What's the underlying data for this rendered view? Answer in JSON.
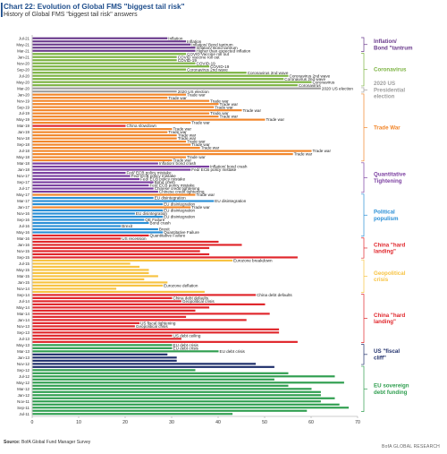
{
  "header": {
    "title": "Chart 22: Evolution of Global FMS \"biggest tail risk\"",
    "subtitle": "History of Global FMS \"biggest tail risk\" answers"
  },
  "footer": {
    "source_label": "Source:",
    "source_text": " BofA Global Fund Manager Survey",
    "brand": "BofA GLOBAL RESEARCH"
  },
  "colors": {
    "inflation": "#6a3a8c",
    "coronavirus": "#7cb342",
    "election": "#9e9e9e",
    "trade_war": "#f2862a",
    "qt": "#7b3fa0",
    "populism": "#2a8fd6",
    "china": "#e0262b",
    "geopolitical": "#f7c342",
    "fiscal_cliff": "#1f2f6b",
    "eu_debt": "#2f9e4f"
  },
  "chart_data": {
    "type": "bar",
    "orientation": "horizontal",
    "xlim": [
      0,
      70
    ],
    "xticks": [
      0,
      10,
      20,
      30,
      40,
      50,
      60,
      70
    ],
    "rows": [
      {
        "date": "Jul-21",
        "value": 29,
        "label": "Inflation",
        "cat": "inflation"
      },
      {
        "date": "",
        "value": 33,
        "label": "Inflation",
        "cat": "inflation"
      },
      {
        "date": "May-21",
        "value": 34,
        "label": "Inflation/ Bond tantrum",
        "cat": "inflation"
      },
      {
        "date": "",
        "value": 35,
        "label": "Inflation/ Bond tantrum",
        "cat": "inflation"
      },
      {
        "date": "Mar-21",
        "value": 35,
        "label": "Higher than expected inflation",
        "cat": "inflation"
      },
      {
        "date": "",
        "value": 33,
        "label": "COVID Vaccine roll out",
        "cat": "coronavirus"
      },
      {
        "date": "Jan-21",
        "value": 31,
        "label": "COVID Vaccine roll out",
        "cat": "coronavirus"
      },
      {
        "date": "",
        "value": 31,
        "label": "COVID-19",
        "cat": "coronavirus"
      },
      {
        "date": "Nov-20",
        "value": 35,
        "label": "COVID-19",
        "cat": "coronavirus"
      },
      {
        "date": "",
        "value": 38,
        "label": "COVID-19",
        "cat": "coronavirus"
      },
      {
        "date": "Sep-20",
        "value": 33,
        "label": "Coronavirus 2nd wave",
        "cat": "coronavirus"
      },
      {
        "date": "",
        "value": 46,
        "label": "Coronavirus 2nd wave",
        "cat": "coronavirus"
      },
      {
        "date": "Jul-20",
        "value": 55,
        "label": "Coronavirus 2nd wave",
        "cat": "coronavirus"
      },
      {
        "date": "",
        "value": 54,
        "label": "Coronavirus 2nd wave",
        "cat": "coronavirus"
      },
      {
        "date": "May-20",
        "value": 60,
        "label": "Coronavirus",
        "cat": "coronavirus"
      },
      {
        "date": "",
        "value": 57,
        "label": "Coronavirus",
        "cat": "coronavirus"
      },
      {
        "date": "Mar-20",
        "value": 62,
        "label": "2020 US election",
        "cat": "election"
      },
      {
        "date": "",
        "value": 31,
        "label": "2020 US election",
        "cat": "election"
      },
      {
        "date": "Jan-20",
        "value": 33,
        "label": "Trade war",
        "cat": "trade_war"
      },
      {
        "date": "",
        "value": 29,
        "label": "Trade war",
        "cat": "trade_war"
      },
      {
        "date": "Nov-19",
        "value": 38,
        "label": "Trade war",
        "cat": "trade_war"
      },
      {
        "date": "",
        "value": 40,
        "label": "Trade war",
        "cat": "trade_war"
      },
      {
        "date": "Sep-19",
        "value": 39,
        "label": "Trade war",
        "cat": "trade_war"
      },
      {
        "date": "",
        "value": 45,
        "label": "Trade war",
        "cat": "trade_war"
      },
      {
        "date": "Jul-19",
        "value": 38,
        "label": "Trade war",
        "cat": "trade_war"
      },
      {
        "date": "",
        "value": 40,
        "label": "Trade war",
        "cat": "trade_war"
      },
      {
        "date": "May-19",
        "value": 50,
        "label": "Trade war",
        "cat": "trade_war"
      },
      {
        "date": "",
        "value": 34,
        "label": "Trade war",
        "cat": "trade_war"
      },
      {
        "date": "Mar-19",
        "value": 20,
        "label": "China slowdown",
        "cat": "china"
      },
      {
        "date": "",
        "value": 30,
        "label": "Trade war",
        "cat": "trade_war"
      },
      {
        "date": "Jan-19",
        "value": 29,
        "label": "Trade war",
        "cat": "trade_war"
      },
      {
        "date": "",
        "value": 31,
        "label": "Trade war",
        "cat": "trade_war"
      },
      {
        "date": "Nov-18",
        "value": 31,
        "label": "Trade war",
        "cat": "trade_war"
      },
      {
        "date": "",
        "value": 33,
        "label": "Trade war",
        "cat": "trade_war"
      },
      {
        "date": "Sep-18",
        "value": 34,
        "label": "Trade war",
        "cat": "trade_war"
      },
      {
        "date": "",
        "value": 36,
        "label": "Trade war",
        "cat": "trade_war"
      },
      {
        "date": "Jul-18",
        "value": 60,
        "label": "Trade war",
        "cat": "trade_war"
      },
      {
        "date": "",
        "value": 56,
        "label": "Trade war",
        "cat": "trade_war"
      },
      {
        "date": "May-18",
        "value": 33,
        "label": "Trade war",
        "cat": "trade_war"
      },
      {
        "date": "",
        "value": 30,
        "label": "Trade war",
        "cat": "trade_war"
      },
      {
        "date": "Mar-18",
        "value": 27,
        "label": "Inflation/ bond crash",
        "cat": "qt"
      },
      {
        "date": "",
        "value": 38,
        "label": "Inflation/ bond crash",
        "cat": "qt"
      },
      {
        "date": "Jan-18",
        "value": 34,
        "label": "Fed/ ECB policy mistake",
        "cat": "qt"
      },
      {
        "date": "",
        "value": 20,
        "label": "Fed/ ECB policy mistake",
        "cat": "qt"
      },
      {
        "date": "Nov-17",
        "value": 21,
        "label": "Fed/ ECB policy mistake",
        "cat": "qt"
      },
      {
        "date": "",
        "value": 23,
        "label": "Fed/ ECB policy mistake",
        "cat": "qt"
      },
      {
        "date": "Sep-17",
        "value": 26,
        "label": "Bond crash",
        "cat": "qt"
      },
      {
        "date": "",
        "value": 25,
        "label": "Fed/ ECB policy mistake",
        "cat": "qt"
      },
      {
        "date": "Jul-17",
        "value": 26,
        "label": "Chinese credit tightening",
        "cat": "qt"
      },
      {
        "date": "",
        "value": 27,
        "label": "Chinese credit tightening",
        "cat": "qt"
      },
      {
        "date": "May-17",
        "value": 35,
        "label": "Trade war",
        "cat": "trade_war"
      },
      {
        "date": "",
        "value": 26,
        "label": "EU disintegration",
        "cat": "populism"
      },
      {
        "date": "Mar-17",
        "value": 39,
        "label": "EU disintegration",
        "cat": "populism"
      },
      {
        "date": "",
        "value": 28,
        "label": "EU disintegration",
        "cat": "populism"
      },
      {
        "date": "Jan-17",
        "value": 34,
        "label": "Trade war",
        "cat": "trade_war"
      },
      {
        "date": "",
        "value": 28,
        "label": "EU disintegration",
        "cat": "populism"
      },
      {
        "date": "Nov-16",
        "value": 22,
        "label": "EU disintegration",
        "cat": "populism"
      },
      {
        "date": "",
        "value": 28,
        "label": "EU disintegration",
        "cat": "populism"
      },
      {
        "date": "Sep-16",
        "value": 24,
        "label": "QE Failure",
        "cat": "populism"
      },
      {
        "date": "",
        "value": 25,
        "label": "Bond crash",
        "cat": "populism"
      },
      {
        "date": "Jul-16",
        "value": 19,
        "label": "Brexit",
        "cat": "populism"
      },
      {
        "date": "",
        "value": 27,
        "label": "Brexit",
        "cat": "populism"
      },
      {
        "date": "May-16",
        "value": 28,
        "label": "Quantitative Failure",
        "cat": "populism"
      },
      {
        "date": "",
        "value": 25,
        "label": "Quantitative Failure",
        "cat": "china"
      },
      {
        "date": "Mar-16",
        "value": 19,
        "label": "US recession",
        "cat": "china"
      },
      {
        "date": "",
        "value": 40,
        "label": "",
        "cat": "china"
      },
      {
        "date": "Jan-16",
        "value": 45,
        "label": "",
        "cat": "china"
      },
      {
        "date": "",
        "value": 38,
        "label": "",
        "cat": "china"
      },
      {
        "date": "Nov-15",
        "value": 36,
        "label": "",
        "cat": "china"
      },
      {
        "date": "",
        "value": 38,
        "label": "",
        "cat": "china"
      },
      {
        "date": "Sep-15",
        "value": 57,
        "label": "",
        "cat": "china"
      },
      {
        "date": "",
        "value": 43,
        "label": "Eurozone breakdown",
        "cat": "geopolitical"
      },
      {
        "date": "Jul-15",
        "value": 21,
        "label": "",
        "cat": "geopolitical"
      },
      {
        "date": "",
        "value": 23,
        "label": "",
        "cat": "geopolitical"
      },
      {
        "date": "May-15",
        "value": 25,
        "label": "",
        "cat": "geopolitical"
      },
      {
        "date": "",
        "value": 25,
        "label": "",
        "cat": "geopolitical"
      },
      {
        "date": "Mar-15",
        "value": 27,
        "label": "",
        "cat": "geopolitical"
      },
      {
        "date": "",
        "value": 24,
        "label": "",
        "cat": "geopolitical"
      },
      {
        "date": "Jan-15",
        "value": 29,
        "label": "",
        "cat": "geopolitical"
      },
      {
        "date": "",
        "value": 28,
        "label": "Eurozone deflation",
        "cat": "geopolitical"
      },
      {
        "date": "Nov-14",
        "value": 18,
        "label": "",
        "cat": "geopolitical"
      },
      {
        "date": "",
        "value": 37,
        "label": "",
        "cat": "geopolitical"
      },
      {
        "date": "Sep-14",
        "value": 48,
        "label": "China debt defaults",
        "cat": "china"
      },
      {
        "date": "",
        "value": 30,
        "label": "China debt defaults",
        "cat": "china"
      },
      {
        "date": "Jul-14",
        "value": 32,
        "label": "Geopolitical crisis",
        "cat": "china"
      },
      {
        "date": "",
        "value": 50,
        "label": "",
        "cat": "china"
      },
      {
        "date": "May-14",
        "value": 38,
        "label": "",
        "cat": "china"
      },
      {
        "date": "",
        "value": 35,
        "label": "",
        "cat": "china"
      },
      {
        "date": "Mar-14",
        "value": 51,
        "label": "",
        "cat": "china"
      },
      {
        "date": "",
        "value": 33,
        "label": "",
        "cat": "china"
      },
      {
        "date": "Jan-14",
        "value": 46,
        "label": "",
        "cat": "china"
      },
      {
        "date": "",
        "value": 23,
        "label": "US fiscal tightening",
        "cat": "china"
      },
      {
        "date": "Nov-13",
        "value": 22,
        "label": "Geopolitical crisis",
        "cat": "china"
      },
      {
        "date": "",
        "value": 53,
        "label": "",
        "cat": "china"
      },
      {
        "date": "Sep-13",
        "value": 53,
        "label": "",
        "cat": "china"
      },
      {
        "date": "",
        "value": 30,
        "label": "US debt ceiling",
        "cat": "china"
      },
      {
        "date": "Jul-13",
        "value": 32,
        "label": "",
        "cat": "china"
      },
      {
        "date": "",
        "value": 57,
        "label": "",
        "cat": "china"
      },
      {
        "date": "May-13",
        "value": 30,
        "label": "EU debt crisis",
        "cat": "eu_debt"
      },
      {
        "date": "",
        "value": 30,
        "label": "EU debt crisis",
        "cat": "eu_debt"
      },
      {
        "date": "Mar-13",
        "value": 40,
        "label": "EU debt crisis",
        "cat": "eu_debt"
      },
      {
        "date": "",
        "value": 29,
        "label": "",
        "cat": "fiscal_cliff"
      },
      {
        "date": "Jan-13",
        "value": 31,
        "label": "",
        "cat": "fiscal_cliff"
      },
      {
        "date": "",
        "value": 31,
        "label": "",
        "cat": "fiscal_cliff"
      },
      {
        "date": "Nov-12",
        "value": 48,
        "label": "",
        "cat": "fiscal_cliff"
      },
      {
        "date": "",
        "value": 52,
        "label": "",
        "cat": "fiscal_cliff"
      },
      {
        "date": "Sep-12",
        "value": 35,
        "label": "",
        "cat": "eu_debt"
      },
      {
        "date": "",
        "value": 55,
        "label": "",
        "cat": "eu_debt"
      },
      {
        "date": "Jul-12",
        "value": 65,
        "label": "",
        "cat": "eu_debt"
      },
      {
        "date": "",
        "value": 52,
        "label": "",
        "cat": "eu_debt"
      },
      {
        "date": "May-12",
        "value": 67,
        "label": "",
        "cat": "eu_debt"
      },
      {
        "date": "",
        "value": 55,
        "label": "",
        "cat": "eu_debt"
      },
      {
        "date": "Mar-12",
        "value": 60,
        "label": "",
        "cat": "eu_debt"
      },
      {
        "date": "",
        "value": 62,
        "label": "",
        "cat": "eu_debt"
      },
      {
        "date": "Jan-12",
        "value": 62,
        "label": "",
        "cat": "eu_debt"
      },
      {
        "date": "",
        "value": 65,
        "label": "",
        "cat": "eu_debt"
      },
      {
        "date": "Nov-11",
        "value": 62,
        "label": "",
        "cat": "eu_debt"
      },
      {
        "date": "",
        "value": 66,
        "label": "",
        "cat": "eu_debt"
      },
      {
        "date": "Sep-11",
        "value": 68,
        "label": "",
        "cat": "eu_debt"
      },
      {
        "date": "",
        "value": 59,
        "label": "",
        "cat": "eu_debt"
      },
      {
        "date": "Jul-11",
        "value": 43,
        "label": "",
        "cat": "eu_debt"
      }
    ],
    "groups": [
      {
        "label": "Inflation/ Bond \"tantrum",
        "cat": "inflation",
        "from": 0,
        "to": 4
      },
      {
        "label": "Coronavirus",
        "cat": "coronavirus",
        "from": 5,
        "to": 15
      },
      {
        "label": "2020 US Presidential election",
        "cat": "election",
        "from": 16,
        "to": 17
      },
      {
        "label": "Trade War",
        "cat": "trade_war",
        "from": 18,
        "to": 39
      },
      {
        "label": "Quantitative Tightening",
        "cat": "qt",
        "from": 40,
        "to": 49
      },
      {
        "label": "Political populism",
        "cat": "populism",
        "from": 50,
        "to": 63
      },
      {
        "label": "China \"hard landing\"",
        "cat": "china",
        "from": 64,
        "to": 70
      },
      {
        "label": "Geopolitical crisis",
        "cat": "geopolitical",
        "from": 71,
        "to": 81
      },
      {
        "label": "China \"hard landing\"",
        "cat": "china",
        "from": 82,
        "to": 97
      },
      {
        "label": "US \"fiscal cliff\"",
        "cat": "fiscal_cliff",
        "from": 98,
        "to": 104
      },
      {
        "label": "EU sovereign debt funding",
        "cat": "eu_debt",
        "from": 105,
        "to": 119
      }
    ]
  }
}
